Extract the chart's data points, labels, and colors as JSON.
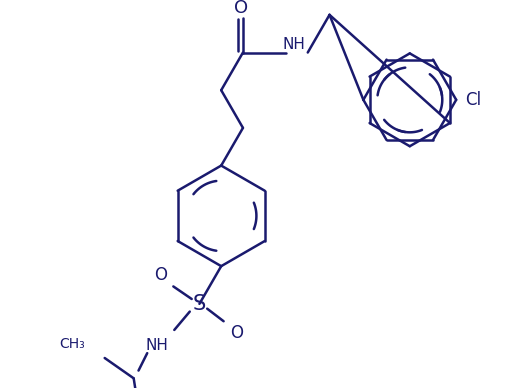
{
  "background_color": "#ffffff",
  "line_color": "#1a1a6e",
  "lw": 1.8,
  "fs": 11,
  "figsize": [
    5.13,
    3.88
  ],
  "dpi": 100,
  "xlim": [
    0,
    513
  ],
  "ylim": [
    0,
    388
  ]
}
